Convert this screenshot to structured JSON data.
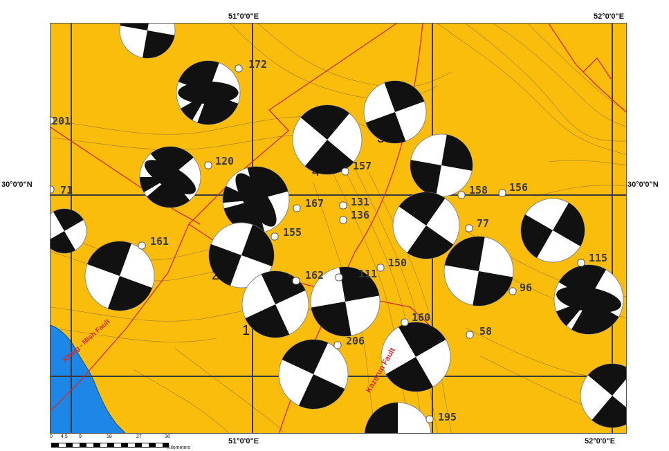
{
  "coords": {
    "lon_51": "51°0'0\"E",
    "lon_52": "52°0'0\"E",
    "lat_30": "30°0'0\"N"
  },
  "faults": {
    "kazerun": "Kazerun Fault",
    "kharg_mish": "Kharg - Mish Fault"
  },
  "event_numbers": [
    "1",
    "2",
    "3",
    "4"
  ],
  "station_labels": [
    "172",
    "201",
    "120",
    "71",
    "157",
    "167",
    "131",
    "136",
    "158",
    "156",
    "155",
    "161",
    "77",
    "111",
    "150",
    "162",
    "115",
    "96",
    "160",
    "58",
    "206",
    "195"
  ],
  "scale": {
    "ticks": [
      "0",
      "4.5",
      "9",
      "18",
      "27",
      "36"
    ],
    "unit": "Kilometers"
  },
  "colors": {
    "land": "#fbbd0c",
    "water": "#1c87e6",
    "fault": "#d9262a",
    "contour": "#9a7a30",
    "grid": "#3a3a3a",
    "beachball_dark": "#111111",
    "beachball_light": "#ffffff"
  }
}
